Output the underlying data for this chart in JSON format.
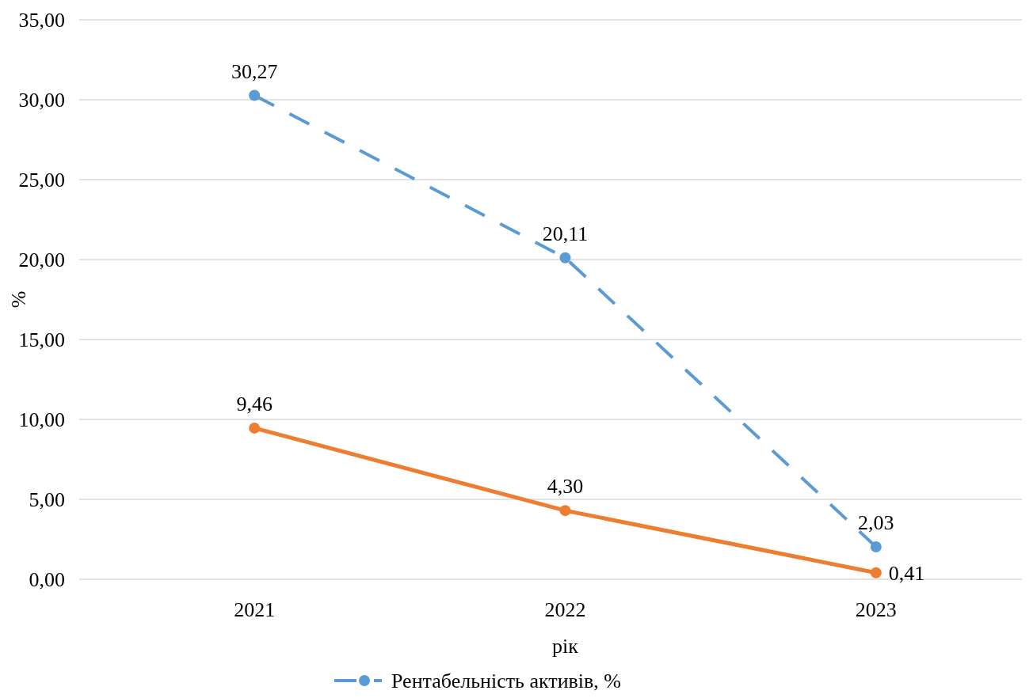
{
  "chart_data": {
    "type": "line",
    "xlabel": "рік",
    "ylabel": "%",
    "categories": [
      "2021",
      "2022",
      "2023"
    ],
    "series": [
      {
        "name": "Рентабельність активів, %",
        "color": "#5b9bd5",
        "values": [
          30.27,
          20.11,
          2.03
        ],
        "value_labels": [
          "30,27",
          "20,11",
          "2,03"
        ],
        "line_style": "dashed"
      },
      {
        "color": "#ed7d31",
        "values": [
          9.46,
          4.3,
          0.41
        ],
        "value_labels": [
          "9,46",
          "4,30",
          "0,41"
        ],
        "line_style": "solid"
      }
    ],
    "ylim": [
      0,
      35
    ],
    "yticks": [
      {
        "value": 0,
        "label": "0,00"
      },
      {
        "value": 5,
        "label": "5,00"
      },
      {
        "value": 10,
        "label": "10,00"
      },
      {
        "value": 15,
        "label": "15,00"
      },
      {
        "value": 20,
        "label": "20,00"
      },
      {
        "value": 25,
        "label": "25,00"
      },
      {
        "value": 30,
        "label": "30,00"
      },
      {
        "value": 35,
        "label": "35,00"
      }
    ],
    "grid": "y",
    "legend": "bottom",
    "marker": "circle"
  }
}
